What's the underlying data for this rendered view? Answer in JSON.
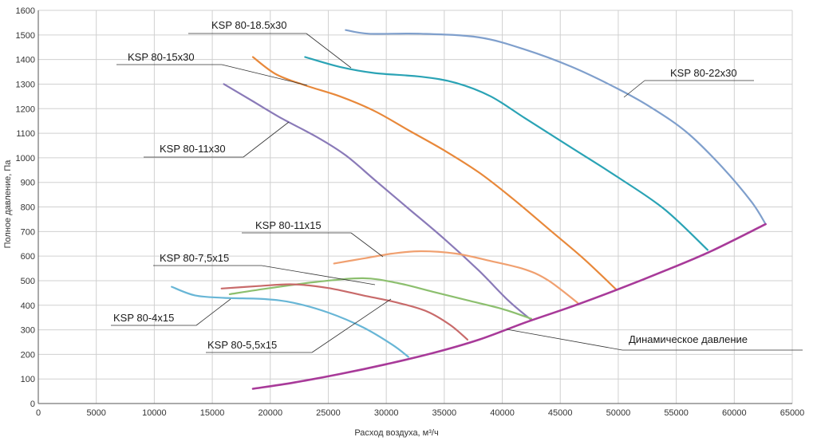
{
  "chart_data": {
    "type": "line",
    "xlabel": "Расход воздуха, м³/ч",
    "ylabel": "Полное давление, Па",
    "xlim": [
      0,
      65000
    ],
    "ylim": [
      0,
      1600
    ],
    "xticks": [
      0,
      5000,
      10000,
      15000,
      20000,
      25000,
      30000,
      35000,
      40000,
      45000,
      50000,
      55000,
      60000,
      65000
    ],
    "yticks": [
      0,
      100,
      200,
      300,
      400,
      500,
      600,
      700,
      800,
      900,
      1000,
      1100,
      1200,
      1300,
      1400,
      1500,
      1600
    ],
    "grid": true,
    "series": [
      {
        "name": "KSP 80-22x30",
        "color": "#7f9fcc",
        "points": [
          [
            26500,
            1520
          ],
          [
            28500,
            1505
          ],
          [
            33000,
            1505
          ],
          [
            38000,
            1490
          ],
          [
            42000,
            1440
          ],
          [
            46000,
            1370
          ],
          [
            50000,
            1280
          ],
          [
            53000,
            1200
          ],
          [
            56000,
            1100
          ],
          [
            59000,
            960
          ],
          [
            61500,
            820
          ],
          [
            62700,
            730
          ]
        ]
      },
      {
        "name": "KSP 80-18.5x30",
        "color": "#2aa3b5",
        "points": [
          [
            23000,
            1410
          ],
          [
            26000,
            1370
          ],
          [
            29000,
            1345
          ],
          [
            33000,
            1330
          ],
          [
            36000,
            1305
          ],
          [
            39000,
            1250
          ],
          [
            42000,
            1160
          ],
          [
            46000,
            1040
          ],
          [
            50000,
            920
          ],
          [
            54000,
            790
          ],
          [
            57700,
            625
          ]
        ]
      },
      {
        "name": "KSP 80-15x30",
        "color": "#e8883a",
        "points": [
          [
            18500,
            1410
          ],
          [
            20500,
            1340
          ],
          [
            23000,
            1295
          ],
          [
            26000,
            1250
          ],
          [
            29000,
            1190
          ],
          [
            32000,
            1110
          ],
          [
            35000,
            1030
          ],
          [
            38000,
            940
          ],
          [
            41000,
            830
          ],
          [
            44000,
            710
          ],
          [
            47000,
            590
          ],
          [
            49800,
            465
          ]
        ]
      },
      {
        "name": "KSP 80-11x30",
        "color": "#8a7ab8",
        "points": [
          [
            16000,
            1300
          ],
          [
            18500,
            1230
          ],
          [
            21000,
            1160
          ],
          [
            24000,
            1085
          ],
          [
            26500,
            1010
          ],
          [
            29000,
            910
          ],
          [
            32000,
            790
          ],
          [
            35000,
            670
          ],
          [
            38000,
            540
          ],
          [
            40500,
            420
          ],
          [
            42500,
            340
          ]
        ]
      },
      {
        "name": "KSP 80-11x15",
        "color": "#f0a070",
        "points": [
          [
            25500,
            570
          ],
          [
            28000,
            590
          ],
          [
            30500,
            610
          ],
          [
            33000,
            620
          ],
          [
            36000,
            610
          ],
          [
            39000,
            580
          ],
          [
            42000,
            545
          ],
          [
            44000,
            500
          ],
          [
            46500,
            410
          ]
        ]
      },
      {
        "name": "KSP 80-7,5x15",
        "color": "#8cbf6e",
        "points": [
          [
            16500,
            445
          ],
          [
            20000,
            470
          ],
          [
            24000,
            495
          ],
          [
            28000,
            510
          ],
          [
            31000,
            490
          ],
          [
            34000,
            455
          ],
          [
            37000,
            420
          ],
          [
            40000,
            385
          ],
          [
            42500,
            345
          ]
        ]
      },
      {
        "name": "KSP 80-5,5x15",
        "color": "#c86a6a",
        "points": [
          [
            15800,
            468
          ],
          [
            19000,
            478
          ],
          [
            22000,
            485
          ],
          [
            25000,
            470
          ],
          [
            28000,
            440
          ],
          [
            31000,
            410
          ],
          [
            33500,
            375
          ],
          [
            35500,
            320
          ],
          [
            37000,
            260
          ]
        ]
      },
      {
        "name": "KSP 80-4x15",
        "color": "#68b6d6",
        "points": [
          [
            11500,
            475
          ],
          [
            13500,
            440
          ],
          [
            16000,
            430
          ],
          [
            19500,
            425
          ],
          [
            22000,
            410
          ],
          [
            25000,
            370
          ],
          [
            28000,
            310
          ],
          [
            30500,
            240
          ],
          [
            31900,
            190
          ]
        ]
      },
      {
        "name": "Динамическое давление",
        "color": "#a83a99",
        "points": [
          [
            18500,
            60
          ],
          [
            22000,
            85
          ],
          [
            26000,
            120
          ],
          [
            30000,
            160
          ],
          [
            34000,
            205
          ],
          [
            38000,
            260
          ],
          [
            42000,
            330
          ],
          [
            46000,
            395
          ],
          [
            50000,
            465
          ],
          [
            54000,
            540
          ],
          [
            58000,
            620
          ],
          [
            62700,
            730
          ]
        ]
      }
    ],
    "labels": [
      {
        "text": "KSP 80-22x30",
        "series": 0
      },
      {
        "text": "KSP 80-18.5x30",
        "series": 1
      },
      {
        "text": "KSP 80-15x30",
        "series": 2
      },
      {
        "text": "KSP 80-11x30",
        "series": 3
      },
      {
        "text": "KSP 80-11x15",
        "series": 4
      },
      {
        "text": "KSP 80-7,5x15",
        "series": 5
      },
      {
        "text": "KSP 80-5,5x15",
        "series": 6
      },
      {
        "text": "KSP 80-4x15",
        "series": 7
      },
      {
        "text": "Динамическое давление",
        "series": 8
      }
    ]
  }
}
